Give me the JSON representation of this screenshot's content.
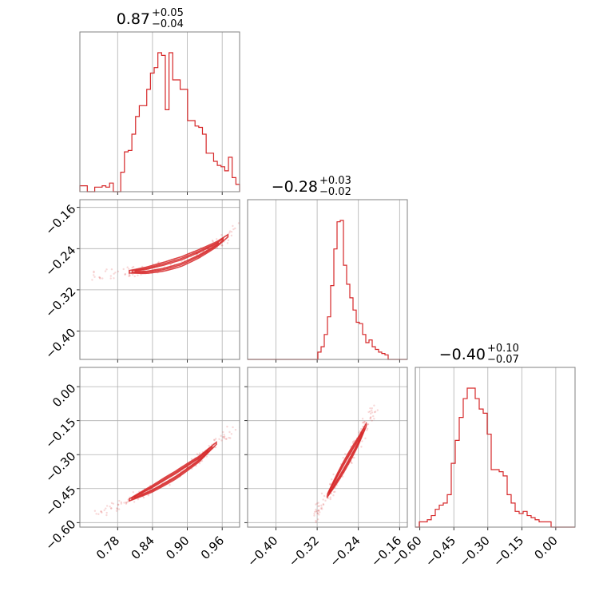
{
  "colors": {
    "accent": "#d62728",
    "grid": "#b0b0b0",
    "frame": "#808080"
  },
  "chart_data": {
    "type": "corner",
    "parameters": [
      {
        "title": {
          "median": "0.87",
          "plus": "+0.05",
          "minus": "−0.04"
        },
        "range": [
          0.715,
          0.99
        ],
        "ticks": [
          0.78,
          0.84,
          0.9,
          0.96
        ],
        "tick_labels": [
          "0.78",
          "0.84",
          "0.90",
          "0.96"
        ],
        "hist_heights": [
          2,
          2,
          0,
          0,
          1,
          1,
          2,
          1,
          4,
          0,
          0,
          12,
          27,
          28,
          40,
          53,
          61,
          61,
          73,
          85,
          89,
          100,
          98,
          58,
          100,
          80,
          80,
          73,
          73,
          50,
          50,
          46,
          45,
          40,
          26,
          26,
          20,
          17,
          16,
          13,
          23,
          8,
          3
        ]
      },
      {
        "title": {
          "median": "−0.28",
          "plus": "+0.03",
          "minus": "−0.02"
        },
        "range": [
          -0.455,
          -0.145
        ],
        "ticks": [
          -0.4,
          -0.32,
          -0.24,
          -0.16
        ],
        "tick_labels": [
          "−0.40",
          "−0.32",
          "−0.24",
          "−0.16"
        ],
        "hist_heights": [
          0,
          0,
          0,
          0,
          0,
          0,
          0,
          0,
          0,
          0,
          0,
          0,
          0,
          0,
          0,
          0,
          0,
          0,
          0,
          0,
          0,
          0,
          3,
          7,
          16,
          29,
          52,
          79,
          99,
          100,
          67,
          53,
          43,
          34,
          25,
          24,
          16,
          10,
          12,
          7,
          5,
          3,
          2,
          1,
          0,
          0,
          0,
          0,
          0,
          0
        ]
      },
      {
        "title": {
          "median": "−0.40",
          "plus": "+0.10",
          "minus": "−0.07"
        },
        "range": [
          -0.62,
          0.085
        ],
        "ticks": [
          -0.6,
          -0.45,
          -0.3,
          -0.15,
          0.0
        ],
        "tick_labels": [
          "−0.60",
          "−0.45",
          "−0.30",
          "−0.15",
          "0.00"
        ],
        "hist_heights": [
          0,
          1,
          1,
          2,
          4,
          7,
          9,
          10,
          14,
          29,
          40,
          51,
          60,
          65,
          65,
          60,
          55,
          53,
          43,
          26,
          26,
          25,
          23,
          14,
          10,
          6,
          5,
          6,
          4,
          3,
          2,
          1,
          1,
          1,
          0,
          0,
          0,
          0,
          0,
          0
        ]
      }
    ],
    "y_axis_panels": {
      "row1": {
        "ticks": [
          -0.16,
          -0.24,
          -0.32,
          -0.4
        ],
        "tick_labels": [
          "−0.16",
          "−0.24",
          "−0.32",
          "−0.40"
        ]
      },
      "row2": {
        "ticks": [
          0.0,
          -0.15,
          -0.3,
          -0.45,
          -0.6
        ],
        "tick_labels": [
          "0.00",
          "−0.15",
          "−0.30",
          "−0.45",
          "−0.60"
        ]
      }
    },
    "joint_curves": {
      "p1_vs_p0": {
        "x": [
          0.8,
          0.83,
          0.86,
          0.89,
          0.92,
          0.95,
          0.97
        ],
        "y": [
          -0.285,
          -0.282,
          -0.275,
          -0.265,
          -0.25,
          -0.232,
          -0.215
        ]
      },
      "p2_vs_p0": {
        "x": [
          0.8,
          0.84,
          0.88,
          0.92,
          0.95
        ],
        "y": [
          -0.5,
          -0.45,
          -0.39,
          -0.32,
          -0.25
        ]
      },
      "p2_vs_p1": {
        "x": [
          -0.3,
          -0.285,
          -0.27,
          -0.255,
          -0.24,
          -0.225
        ],
        "y": [
          -0.48,
          -0.42,
          -0.36,
          -0.3,
          -0.24,
          -0.17
        ]
      }
    },
    "grid": true,
    "xlabel": "",
    "ylabel": ""
  }
}
